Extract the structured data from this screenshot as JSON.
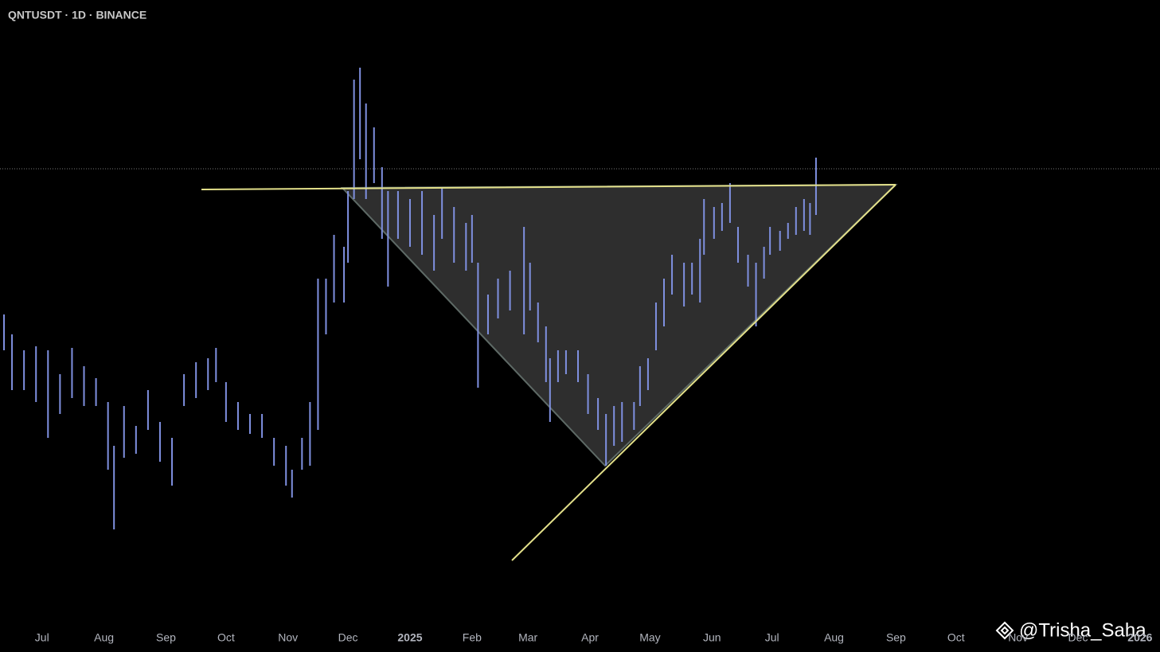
{
  "chart_data": {
    "type": "ohlc",
    "title": "QNTUSDT · 1D · BINANCE",
    "watermark": "@Trisha_Saha",
    "color": "#7f90e0",
    "xlim": [
      0,
      580
    ],
    "ylim": [
      20,
      176
    ],
    "xticks": [
      {
        "value": 21,
        "label": "Jul"
      },
      {
        "value": 52,
        "label": "Aug"
      },
      {
        "value": 83,
        "label": "Sep"
      },
      {
        "value": 113,
        "label": "Oct"
      },
      {
        "value": 144,
        "label": "Nov"
      },
      {
        "value": 174,
        "label": "Dec"
      },
      {
        "value": 205,
        "label": "2025"
      },
      {
        "value": 236,
        "label": "Feb"
      },
      {
        "value": 264,
        "label": "Mar"
      },
      {
        "value": 295,
        "label": "Apr"
      },
      {
        "value": 325,
        "label": "May"
      },
      {
        "value": 356,
        "label": "Jun"
      },
      {
        "value": 386,
        "label": "Jul"
      },
      {
        "value": 417,
        "label": "Aug"
      },
      {
        "value": 448,
        "label": "Sep"
      },
      {
        "value": 478,
        "label": "Oct"
      },
      {
        "value": 509,
        "label": "Nov"
      },
      {
        "value": 539,
        "label": "Dec"
      },
      {
        "value": 570,
        "label": "2026"
      }
    ],
    "x": [
      2,
      6,
      12,
      18,
      24,
      30,
      36,
      42,
      48,
      54,
      57,
      62,
      68,
      74,
      80,
      86,
      92,
      98,
      104,
      108,
      113,
      119,
      125,
      131,
      137,
      143,
      146,
      151,
      155,
      159,
      163,
      167,
      172,
      174,
      177,
      180,
      183,
      187,
      191,
      194,
      199,
      205,
      211,
      217,
      221,
      227,
      233,
      236,
      239,
      244,
      249,
      255,
      262,
      265,
      269,
      273,
      275,
      279,
      283,
      289,
      294,
      299,
      303,
      307,
      311,
      317,
      320,
      324,
      328,
      332,
      336,
      342,
      346,
      350,
      352,
      357,
      361,
      365,
      369,
      374,
      378,
      382,
      385,
      390,
      394,
      398,
      402,
      405,
      408
    ],
    "high": [
      97,
      92,
      88,
      89,
      88,
      82,
      88.6,
      84,
      81,
      75,
      64,
      74,
      69,
      78,
      70,
      66,
      82,
      85,
      86,
      88.6,
      80,
      75,
      72,
      72,
      66,
      64,
      58,
      66,
      75,
      106,
      106,
      117,
      114,
      128,
      156,
      159,
      150,
      144,
      134,
      128,
      128,
      126,
      128,
      122,
      129,
      124,
      120,
      122,
      110,
      102,
      106,
      108,
      119,
      110,
      100,
      94,
      86,
      88,
      88,
      88,
      82,
      76,
      72,
      74,
      75,
      75,
      84,
      86,
      100,
      106,
      112,
      110,
      110,
      116,
      126,
      124,
      125,
      130,
      119,
      112,
      110,
      114,
      119,
      118,
      120,
      124,
      126,
      125,
      136.4
    ],
    "low": [
      88,
      78,
      78,
      75,
      66,
      72,
      76,
      74,
      74,
      58,
      43,
      61,
      62,
      68,
      60,
      54,
      74,
      76,
      78,
      80,
      70,
      68,
      67,
      66,
      59,
      54,
      51,
      58,
      59,
      68,
      92,
      100,
      100,
      110,
      126,
      136,
      126,
      130,
      116,
      104,
      116,
      114,
      112,
      108,
      116,
      110,
      108,
      110,
      78.6,
      92,
      96,
      98,
      92,
      98,
      90,
      80,
      70,
      80,
      82,
      80,
      72,
      68,
      59,
      64,
      65,
      68,
      74,
      78,
      88,
      94,
      102,
      99,
      102,
      100,
      112,
      116,
      118,
      120,
      110,
      104,
      94,
      106,
      112,
      113,
      116,
      117,
      118,
      117,
      122
    ]
  }
}
